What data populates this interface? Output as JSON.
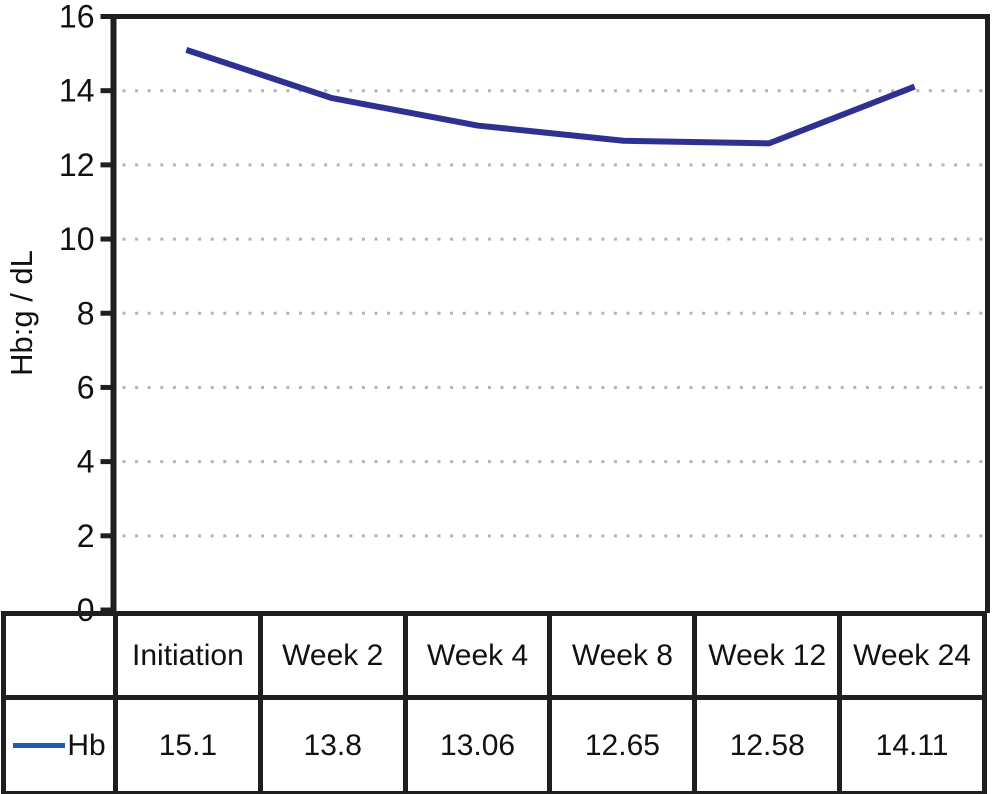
{
  "chart_data": {
    "type": "line",
    "title": "",
    "categories": [
      "Initiation",
      "Week 2",
      "Week 4",
      "Week 8",
      "Week 12",
      "Week 24"
    ],
    "series": [
      {
        "name": "Hb",
        "values": [
          15.1,
          13.8,
          13.06,
          12.65,
          12.58,
          14.11
        ]
      }
    ],
    "xlabel": "",
    "ylabel": "Hb:g / dL",
    "ylim": [
      0,
      16
    ],
    "ytick_step": 2,
    "yticks": [
      0,
      2,
      4,
      6,
      8,
      10,
      12,
      14,
      16
    ],
    "grid": "horizontal-dotted",
    "legend_position": "bottom-table-left"
  },
  "table": {
    "legend_label": "Hb",
    "columns": [
      "Initiation",
      "Week 2",
      "Week 4",
      "Week 8",
      "Week 12",
      "Week 24"
    ],
    "values": [
      "15.1",
      "13.8",
      "13.06",
      "12.65",
      "12.58",
      "14.11"
    ]
  },
  "colors": {
    "series_line": "#2e3192",
    "legend_swatch": "#1f5bb5",
    "axis": "#1f1f1f",
    "grid_dots": "#b5b3b6",
    "text": "#111111",
    "background": "#ffffff"
  }
}
